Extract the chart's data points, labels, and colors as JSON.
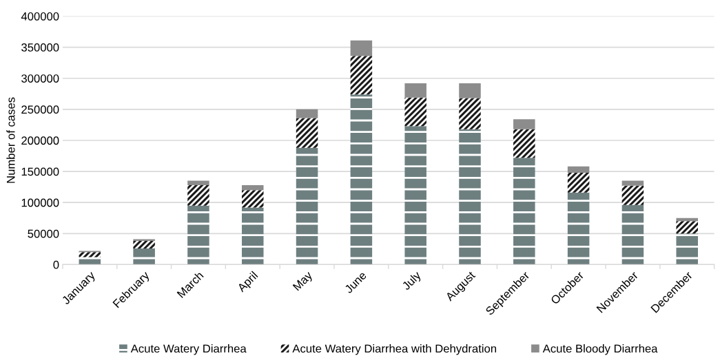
{
  "chart_data": {
    "type": "bar",
    "stacked": true,
    "ylabel": "Number of cases",
    "categories": [
      "January",
      "February",
      "March",
      "April",
      "May",
      "June",
      "July",
      "August",
      "September",
      "October",
      "November",
      "December"
    ],
    "series": [
      {
        "name": "Acute Watery Diarrhea",
        "color": "#6e7f80",
        "values": [
          12000,
          26000,
          95000,
          92000,
          188000,
          274000,
          223000,
          218000,
          172000,
          116000,
          96000,
          50000
        ]
      },
      {
        "name": "Acute Watery Diarrhea with Dehydration",
        "color": "#1a1a1a",
        "values": [
          8000,
          12000,
          33000,
          28000,
          48000,
          62000,
          46000,
          50000,
          46000,
          32000,
          31000,
          20000
        ]
      },
      {
        "name": "Acute Bloody Diarrhea",
        "color": "#8c8c8c",
        "values": [
          2000,
          3000,
          7000,
          8000,
          14000,
          25000,
          23000,
          24000,
          16000,
          10000,
          8000,
          5000
        ]
      }
    ],
    "ylim": [
      0,
      400000
    ],
    "yticks": [
      0,
      50000,
      100000,
      150000,
      200000,
      250000,
      300000,
      350000,
      400000
    ],
    "grid": "y",
    "legend": "bottom"
  }
}
